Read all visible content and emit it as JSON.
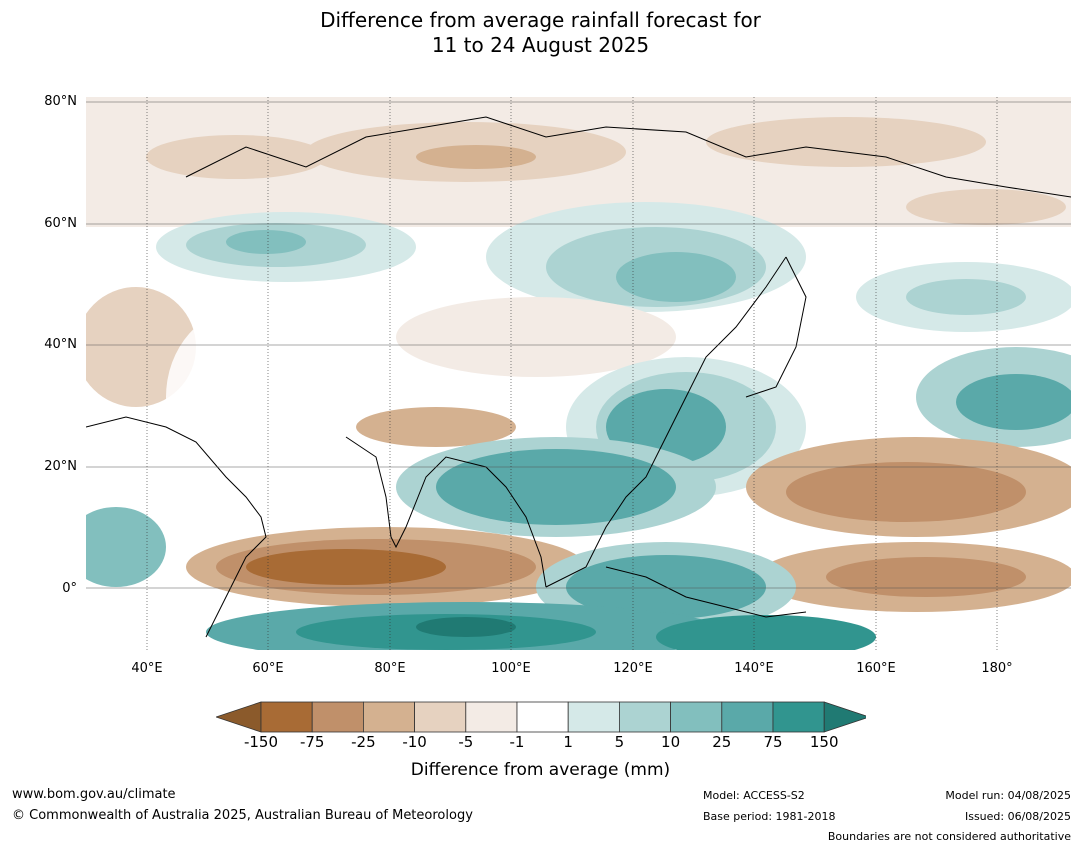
{
  "title": {
    "line1": "Difference from average rainfall forecast for",
    "line2": "11 to 24 August 2025"
  },
  "map": {
    "lat_labels": [
      "80°N",
      "60°N",
      "40°N",
      "20°N",
      "0°"
    ],
    "lon_labels": [
      "40°E",
      "60°E",
      "80°E",
      "100°E",
      "120°E",
      "140°E",
      "160°E",
      "180°"
    ],
    "lat_range": [
      -10,
      80
    ],
    "lon_range": [
      30,
      192
    ]
  },
  "legend": {
    "ticks": [
      "-150",
      "-75",
      "-25",
      "-10",
      "-5",
      "-1",
      "1",
      "5",
      "10",
      "25",
      "75",
      "150"
    ],
    "colors": [
      "#a86b35",
      "#c0906a",
      "#d4b190",
      "#e6d2c0",
      "#f3ebe5",
      "#ffffff",
      "#d5e9e8",
      "#acd3d2",
      "#82bfbe",
      "#5aa9a9",
      "#31958f",
      "#207a73"
    ],
    "label": "Difference from average (mm)"
  },
  "footer": {
    "url": "www.bom.gov.au/climate",
    "copyright": "© Commonwealth of Australia 2025, Australian Bureau of Meteorology",
    "model": "Model: ACCESS-S2",
    "base_period": "Base period: 1981-2018",
    "model_run": "Model run: 04/08/2025",
    "issued": "Issued: 06/08/2025",
    "disclaimer": "Boundaries are not considered authoritative"
  }
}
